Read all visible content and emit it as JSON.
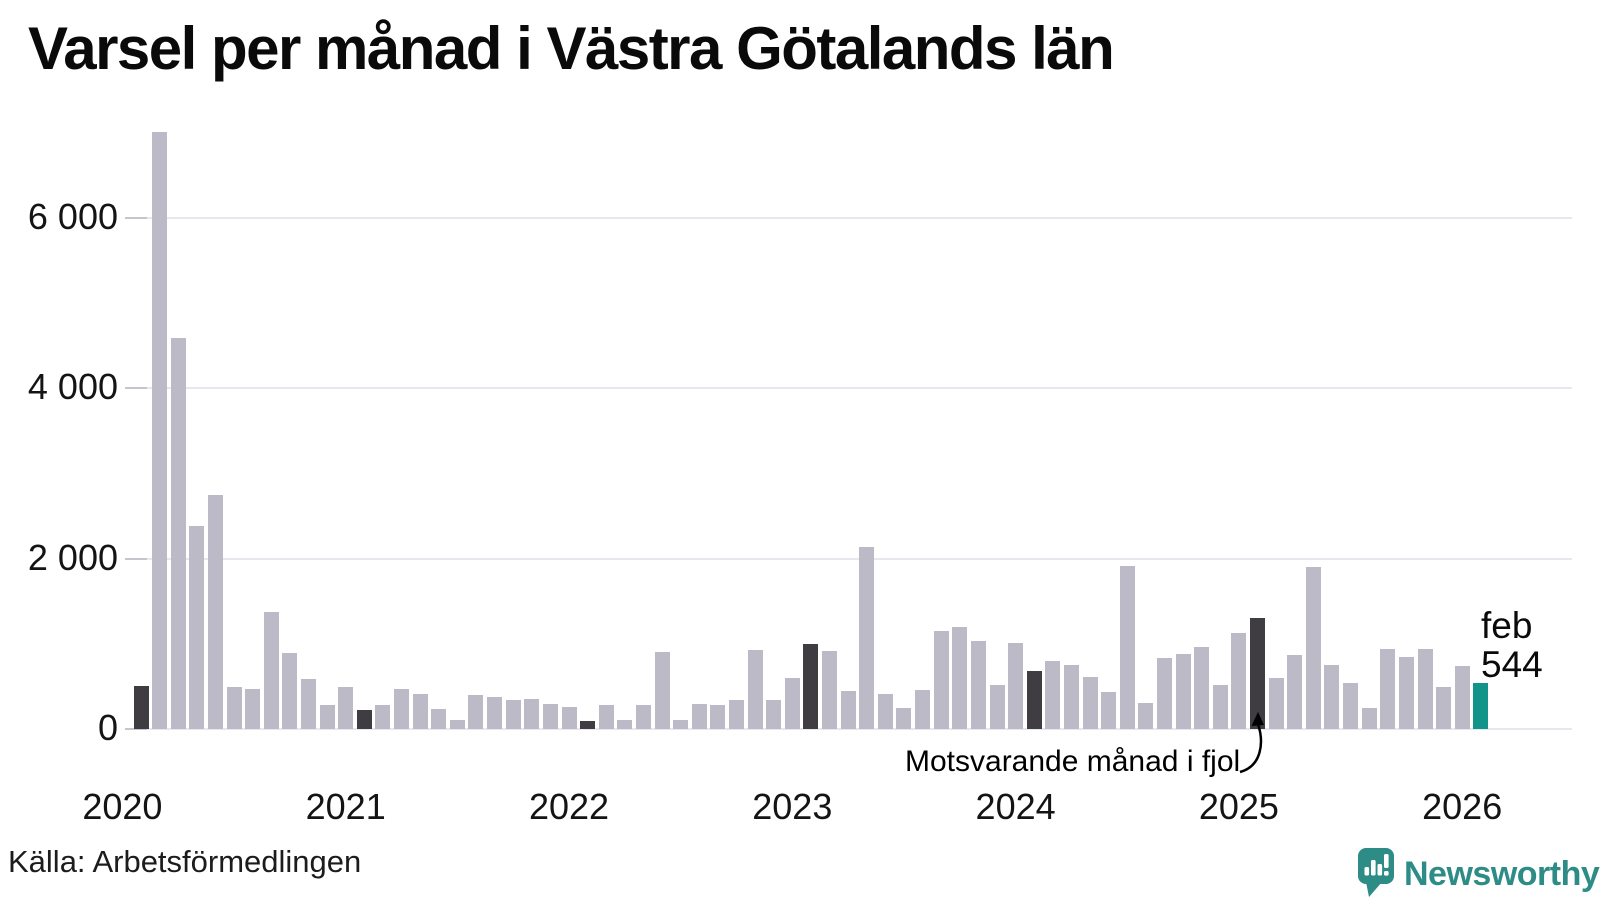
{
  "title": "Varsel per månad i Västra Götalands län",
  "annotation": {
    "text": "Motsvarande månad i fjol",
    "target_month": "feb 2025"
  },
  "highlight_label": {
    "month": "feb",
    "value": "544"
  },
  "footer": {
    "source": "Källa: Arbetsförmedlingen",
    "brand": "Newsworthy"
  },
  "colors": {
    "bar_normal": "#bdbac8",
    "bar_dark": "#3f3d41",
    "bar_highlight": "#12948a",
    "gridline": "#e8e7ed",
    "gridtick": "#c6c5cd",
    "logo": "#2e8c86",
    "text": "#141414"
  },
  "chart_data": {
    "type": "bar",
    "title": "Varsel per månad i Västra Götalands län",
    "xlabel": "",
    "ylabel": "",
    "x_start": "feb 2020",
    "x_end": "feb 2026",
    "ylim": [
      0,
      7100
    ],
    "yticks": [
      0,
      2000,
      4000,
      6000
    ],
    "ytick_labels": [
      "0",
      "2 000",
      "4 000",
      "6 000"
    ],
    "xtick_labels": [
      "2020",
      "2021",
      "2022",
      "2023",
      "2024",
      "2025",
      "2026"
    ],
    "legend": "none",
    "grid": "horizontal",
    "points": [
      {
        "m": "feb 2020",
        "v": 500,
        "t": "dark"
      },
      {
        "m": "mar 2020",
        "v": 7000,
        "t": "normal"
      },
      {
        "m": "apr 2020",
        "v": 4590,
        "t": "normal"
      },
      {
        "m": "maj 2020",
        "v": 2380,
        "t": "normal"
      },
      {
        "m": "jun 2020",
        "v": 2750,
        "t": "normal"
      },
      {
        "m": "jul 2020",
        "v": 490,
        "t": "normal"
      },
      {
        "m": "aug 2020",
        "v": 470,
        "t": "normal"
      },
      {
        "m": "sep 2020",
        "v": 1370,
        "t": "normal"
      },
      {
        "m": "okt 2020",
        "v": 890,
        "t": "normal"
      },
      {
        "m": "nov 2020",
        "v": 590,
        "t": "normal"
      },
      {
        "m": "dec 2020",
        "v": 280,
        "t": "normal"
      },
      {
        "m": "jan 2021",
        "v": 490,
        "t": "normal"
      },
      {
        "m": "feb 2021",
        "v": 225,
        "t": "dark"
      },
      {
        "m": "mar 2021",
        "v": 280,
        "t": "normal"
      },
      {
        "m": "apr 2021",
        "v": 470,
        "t": "normal"
      },
      {
        "m": "maj 2021",
        "v": 410,
        "t": "normal"
      },
      {
        "m": "jun 2021",
        "v": 235,
        "t": "normal"
      },
      {
        "m": "jul 2021",
        "v": 105,
        "t": "normal"
      },
      {
        "m": "aug 2021",
        "v": 400,
        "t": "normal"
      },
      {
        "m": "sep 2021",
        "v": 375,
        "t": "normal"
      },
      {
        "m": "okt 2021",
        "v": 340,
        "t": "normal"
      },
      {
        "m": "nov 2021",
        "v": 350,
        "t": "normal"
      },
      {
        "m": "dec 2021",
        "v": 290,
        "t": "normal"
      },
      {
        "m": "jan 2022",
        "v": 260,
        "t": "normal"
      },
      {
        "m": "feb 2022",
        "v": 90,
        "t": "dark"
      },
      {
        "m": "mar 2022",
        "v": 285,
        "t": "normal"
      },
      {
        "m": "apr 2022",
        "v": 105,
        "t": "normal"
      },
      {
        "m": "maj 2022",
        "v": 280,
        "t": "normal"
      },
      {
        "m": "jun 2022",
        "v": 900,
        "t": "normal"
      },
      {
        "m": "jul 2022",
        "v": 105,
        "t": "normal"
      },
      {
        "m": "aug 2022",
        "v": 295,
        "t": "normal"
      },
      {
        "m": "sep 2022",
        "v": 285,
        "t": "normal"
      },
      {
        "m": "okt 2022",
        "v": 340,
        "t": "normal"
      },
      {
        "m": "nov 2022",
        "v": 925,
        "t": "normal"
      },
      {
        "m": "dec 2022",
        "v": 340,
        "t": "normal"
      },
      {
        "m": "jan 2023",
        "v": 600,
        "t": "normal"
      },
      {
        "m": "feb 2023",
        "v": 1000,
        "t": "dark"
      },
      {
        "m": "mar 2023",
        "v": 915,
        "t": "normal"
      },
      {
        "m": "apr 2023",
        "v": 445,
        "t": "normal"
      },
      {
        "m": "maj 2023",
        "v": 2130,
        "t": "normal"
      },
      {
        "m": "jun 2023",
        "v": 415,
        "t": "normal"
      },
      {
        "m": "jul 2023",
        "v": 245,
        "t": "normal"
      },
      {
        "m": "aug 2023",
        "v": 460,
        "t": "normal"
      },
      {
        "m": "sep 2023",
        "v": 1155,
        "t": "normal"
      },
      {
        "m": "okt 2023",
        "v": 1195,
        "t": "normal"
      },
      {
        "m": "nov 2023",
        "v": 1030,
        "t": "normal"
      },
      {
        "m": "dec 2023",
        "v": 520,
        "t": "normal"
      },
      {
        "m": "jan 2024",
        "v": 1010,
        "t": "normal"
      },
      {
        "m": "feb 2024",
        "v": 680,
        "t": "dark"
      },
      {
        "m": "mar 2024",
        "v": 795,
        "t": "normal"
      },
      {
        "m": "apr 2024",
        "v": 750,
        "t": "normal"
      },
      {
        "m": "maj 2024",
        "v": 615,
        "t": "normal"
      },
      {
        "m": "jun 2024",
        "v": 430,
        "t": "normal"
      },
      {
        "m": "jul 2024",
        "v": 1910,
        "t": "normal"
      },
      {
        "m": "aug 2024",
        "v": 305,
        "t": "normal"
      },
      {
        "m": "sep 2024",
        "v": 830,
        "t": "normal"
      },
      {
        "m": "okt 2024",
        "v": 880,
        "t": "normal"
      },
      {
        "m": "nov 2024",
        "v": 965,
        "t": "normal"
      },
      {
        "m": "dec 2024",
        "v": 520,
        "t": "normal"
      },
      {
        "m": "jan 2025",
        "v": 1130,
        "t": "normal"
      },
      {
        "m": "feb 2025",
        "v": 1300,
        "t": "dark"
      },
      {
        "m": "mar 2025",
        "v": 595,
        "t": "normal"
      },
      {
        "m": "apr 2025",
        "v": 870,
        "t": "normal"
      },
      {
        "m": "maj 2025",
        "v": 1895,
        "t": "normal"
      },
      {
        "m": "jun 2025",
        "v": 750,
        "t": "normal"
      },
      {
        "m": "jul 2025",
        "v": 535,
        "t": "normal"
      },
      {
        "m": "aug 2025",
        "v": 245,
        "t": "normal"
      },
      {
        "m": "sep 2025",
        "v": 940,
        "t": "normal"
      },
      {
        "m": "okt 2025",
        "v": 850,
        "t": "normal"
      },
      {
        "m": "nov 2025",
        "v": 940,
        "t": "normal"
      },
      {
        "m": "dec 2025",
        "v": 495,
        "t": "normal"
      },
      {
        "m": "jan 2026",
        "v": 735,
        "t": "normal"
      },
      {
        "m": "feb 2026",
        "v": 544,
        "t": "highlight"
      }
    ]
  }
}
